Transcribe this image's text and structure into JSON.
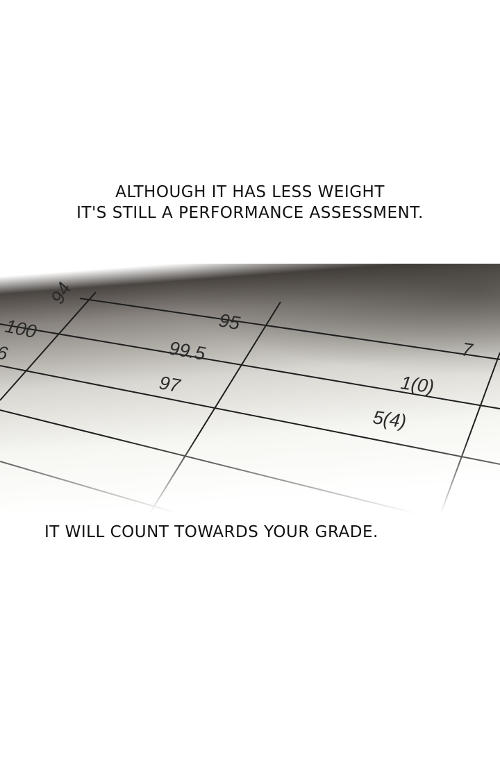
{
  "captions": {
    "line1": "ALTHOUGH IT HAS LESS WEIGHT",
    "line2": "IT'S STILL A PERFORMANCE ASSESSMENT.",
    "line3": "IT WILL COUNT TOWARDS YOUR GRADE."
  },
  "grade_sheet": {
    "col1": [
      "94",
      "100",
      "6"
    ],
    "col2": [
      "95",
      "99.5",
      "97"
    ],
    "col3": [
      "7",
      "1(0)",
      "5(4)"
    ]
  }
}
